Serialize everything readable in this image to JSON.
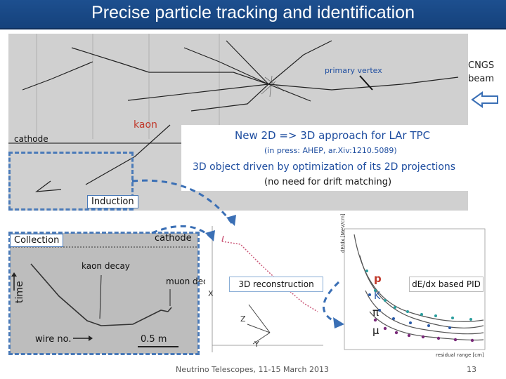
{
  "slide": {
    "title": "Precise particle tracking and identification",
    "footer": "Neutrino Telescopes, 11-15 March 2013",
    "page_number": "13"
  },
  "event_display": {
    "primary_vertex_label": "primary vertex",
    "beam_label_line1": "CNGS",
    "beam_label_line2": "beam",
    "kaon_label": "kaon",
    "cathode_label": "cathode",
    "approach_title": "New 2D => 3D approach for LAr TPC",
    "press_note": "(in press: AHEP, ar.Xiv:1210.5089)",
    "method_line1": "3D object driven by optimization of its 2D projections",
    "method_line2": "(no need for drift matching)",
    "induction_label": "Induction"
  },
  "collection_view": {
    "collection_label": "Collection",
    "cathode_label": "cathode",
    "kaon_decay_label": "kaon decay",
    "muon_decay_label": "muon decay",
    "time_axis_label": "time",
    "wire_axis_label": "wire no.",
    "scale_label": "0.5 m"
  },
  "reconstruction": {
    "label": "3D reconstruction",
    "axis_x": "X",
    "axis_y": "Y",
    "axis_z": "Z"
  },
  "pid": {
    "particle_p": "p",
    "particle_k": "K",
    "particle_pi": "π",
    "particle_mu": "μ",
    "label": "dE/dx based PID",
    "y_axis_label": "dE/dx [MeV/cm]",
    "x_axis_label": "residual range [cm]"
  },
  "colors": {
    "title_bar": "#1d4f8f",
    "accent_blue": "#1f4ea0",
    "kaon_red": "#c0392b",
    "dashed_blue": "#4a7ab8",
    "arrow_blue": "#3a6fb5"
  }
}
